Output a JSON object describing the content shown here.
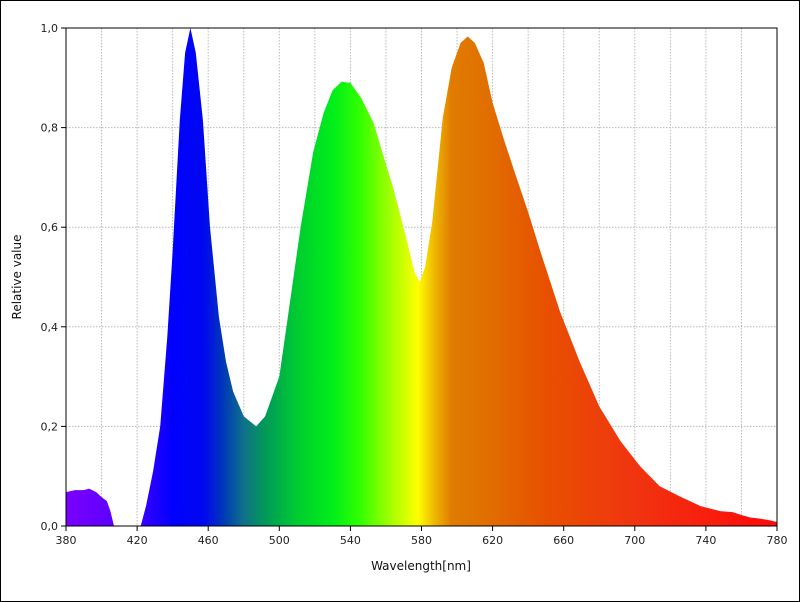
{
  "chart_data": {
    "type": "area",
    "title": "",
    "xlabel": "Wavelength[nm]",
    "ylabel": "Relative value",
    "xlim": [
      380,
      780
    ],
    "ylim": [
      0,
      1
    ],
    "x_ticks": [
      "380",
      "420",
      "460",
      "500",
      "540",
      "580",
      "620",
      "660",
      "700",
      "740",
      "780"
    ],
    "y_ticks": [
      "0,0",
      "0,2",
      "0,4",
      "0,6",
      "0,8",
      "1,0"
    ],
    "grid": {
      "vertical_step_nm": 20,
      "horizontal_step": 0.2,
      "style": "dotted"
    },
    "fill": "spectral gradient by wavelength",
    "gradient_stops": [
      [
        380,
        "#7a00ff"
      ],
      [
        410,
        "#5a00ff"
      ],
      [
        425,
        "#3000ff"
      ],
      [
        440,
        "#0000ff"
      ],
      [
        458,
        "#0008ee"
      ],
      [
        470,
        "#0040b0"
      ],
      [
        480,
        "#10708a"
      ],
      [
        492,
        "#009a58"
      ],
      [
        510,
        "#00cc30"
      ],
      [
        530,
        "#00ee1a"
      ],
      [
        545,
        "#30ff00"
      ],
      [
        562,
        "#a0ff00"
      ],
      [
        578,
        "#ffff00"
      ],
      [
        586,
        "#f0c000"
      ],
      [
        597,
        "#e07c00"
      ],
      [
        615,
        "#e07000"
      ],
      [
        650,
        "#e85000"
      ],
      [
        700,
        "#f03410"
      ],
      [
        780,
        "#ff0a0a"
      ]
    ],
    "points": [
      [
        380,
        0.068
      ],
      [
        385,
        0.072
      ],
      [
        390,
        0.072
      ],
      [
        393,
        0.075
      ],
      [
        397,
        0.068
      ],
      [
        400,
        0.058
      ],
      [
        403,
        0.05
      ],
      [
        405,
        0.03
      ],
      [
        407,
        0
      ],
      [
        422,
        0
      ],
      [
        425,
        0.04
      ],
      [
        429,
        0.11
      ],
      [
        433,
        0.2
      ],
      [
        437,
        0.38
      ],
      [
        440,
        0.55
      ],
      [
        444,
        0.815
      ],
      [
        447,
        0.95
      ],
      [
        450,
        1.0
      ],
      [
        453,
        0.95
      ],
      [
        457,
        0.815
      ],
      [
        461,
        0.6
      ],
      [
        466,
        0.42
      ],
      [
        470,
        0.33
      ],
      [
        474,
        0.27
      ],
      [
        480,
        0.22
      ],
      [
        487,
        0.2
      ],
      [
        492,
        0.22
      ],
      [
        496,
        0.26
      ],
      [
        500,
        0.3
      ],
      [
        506,
        0.45
      ],
      [
        512,
        0.6
      ],
      [
        519,
        0.75
      ],
      [
        525,
        0.83
      ],
      [
        530,
        0.875
      ],
      [
        535,
        0.892
      ],
      [
        540,
        0.89
      ],
      [
        546,
        0.86
      ],
      [
        553,
        0.81
      ],
      [
        558,
        0.75
      ],
      [
        564,
        0.68
      ],
      [
        572,
        0.57
      ],
      [
        576,
        0.51
      ],
      [
        579,
        0.49
      ],
      [
        582,
        0.52
      ],
      [
        586,
        0.61
      ],
      [
        592,
        0.82
      ],
      [
        597,
        0.92
      ],
      [
        602,
        0.97
      ],
      [
        606,
        0.983
      ],
      [
        610,
        0.97
      ],
      [
        615,
        0.93
      ],
      [
        620,
        0.85
      ],
      [
        626,
        0.78
      ],
      [
        632,
        0.715
      ],
      [
        640,
        0.63
      ],
      [
        647,
        0.55
      ],
      [
        658,
        0.43
      ],
      [
        669,
        0.33
      ],
      [
        680,
        0.24
      ],
      [
        692,
        0.17
      ],
      [
        703,
        0.12
      ],
      [
        714,
        0.08
      ],
      [
        725,
        0.06
      ],
      [
        737,
        0.04
      ],
      [
        748,
        0.03
      ],
      [
        755,
        0.028
      ],
      [
        760,
        0.022
      ],
      [
        765,
        0.017
      ],
      [
        770,
        0.015
      ],
      [
        775,
        0.012
      ],
      [
        780,
        0.008
      ]
    ]
  }
}
